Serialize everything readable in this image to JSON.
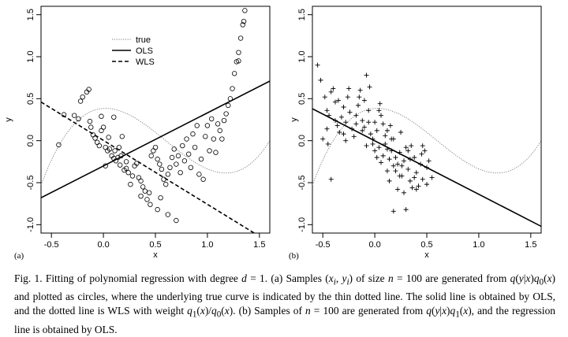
{
  "chart_data": [
    {
      "type": "scatter",
      "panel_label": "(a)",
      "xlabel": "x",
      "ylabel": "y",
      "xlim": [
        -0.6,
        1.6
      ],
      "ylim": [
        -1.1,
        1.6
      ],
      "xticks": [
        "-0.5",
        "0.0",
        "0.5",
        "1.0",
        "1.5"
      ],
      "yticks": [
        "-1.0",
        "-0.5",
        "0.0",
        "0.5",
        "1.0",
        "1.5"
      ],
      "legend": {
        "position": "top-center",
        "entries": [
          "true",
          "OLS",
          "WLS"
        ]
      },
      "series": [
        {
          "name": "true",
          "kind": "curve",
          "style": "dotted",
          "formula": "(x-0.6)^3 - (x-0.6)",
          "x": [
            -0.6,
            -0.4,
            -0.2,
            0.0,
            0.2,
            0.4,
            0.6,
            0.8,
            1.0,
            1.2,
            1.3,
            1.4,
            1.45
          ],
          "y": [
            -0.53,
            0.0,
            0.29,
            0.38,
            0.34,
            0.19,
            0.0,
            -0.19,
            -0.34,
            -0.38,
            -0.36,
            -0.29,
            -0.24
          ]
        },
        {
          "name": "OLS",
          "kind": "line",
          "style": "solid",
          "x": [
            -0.6,
            1.6
          ],
          "y": [
            -0.68,
            0.71
          ]
        },
        {
          "name": "WLS",
          "kind": "line",
          "style": "dashed",
          "x": [
            -0.6,
            1.45
          ],
          "y": [
            0.46,
            -1.1
          ]
        },
        {
          "name": "samples",
          "kind": "points",
          "marker": "circle",
          "points": [
            [
              -0.38,
              0.31
            ],
            [
              -0.28,
              0.3
            ],
            [
              -0.24,
              0.26
            ],
            [
              -0.22,
              0.47
            ],
            [
              -0.2,
              0.52
            ],
            [
              -0.16,
              0.58
            ],
            [
              -0.14,
              0.61
            ],
            [
              -0.13,
              0.23
            ],
            [
              -0.12,
              0.16
            ],
            [
              -0.1,
              0.07
            ],
            [
              -0.08,
              0.03
            ],
            [
              -0.06,
              -0.02
            ],
            [
              -0.04,
              -0.06
            ],
            [
              -0.02,
              0.29
            ],
            [
              0.0,
              0.16
            ],
            [
              0.02,
              -0.08
            ],
            [
              0.04,
              -0.12
            ],
            [
              0.06,
              -0.1
            ],
            [
              0.08,
              -0.18
            ],
            [
              0.1,
              -0.21
            ],
            [
              0.12,
              -0.24
            ],
            [
              0.14,
              -0.2
            ],
            [
              0.16,
              -0.29
            ],
            [
              0.18,
              0.05
            ],
            [
              0.2,
              -0.35
            ],
            [
              0.22,
              -0.33
            ],
            [
              0.24,
              -0.38
            ],
            [
              0.26,
              -0.52
            ],
            [
              0.28,
              -0.42
            ],
            [
              0.3,
              -0.3
            ],
            [
              0.32,
              -0.27
            ],
            [
              0.34,
              -0.44
            ],
            [
              0.36,
              -0.48
            ],
            [
              0.38,
              -0.55
            ],
            [
              0.4,
              -0.6
            ],
            [
              0.42,
              -0.7
            ],
            [
              0.44,
              -0.62
            ],
            [
              0.46,
              -0.18
            ],
            [
              0.48,
              -0.12
            ],
            [
              0.5,
              -0.08
            ],
            [
              0.52,
              -0.22
            ],
            [
              0.54,
              -0.28
            ],
            [
              0.56,
              -0.34
            ],
            [
              0.58,
              -0.46
            ],
            [
              0.6,
              -0.52
            ],
            [
              0.62,
              -0.4
            ],
            [
              0.64,
              -0.32
            ],
            [
              0.66,
              -0.2
            ],
            [
              0.68,
              -0.1
            ],
            [
              0.7,
              -0.28
            ],
            [
              0.72,
              -0.18
            ],
            [
              0.74,
              -0.38
            ],
            [
              0.76,
              -0.06
            ],
            [
              0.78,
              -0.24
            ],
            [
              0.8,
              0.02
            ],
            [
              0.82,
              -0.16
            ],
            [
              0.84,
              -0.32
            ],
            [
              0.86,
              0.08
            ],
            [
              0.88,
              -0.08
            ],
            [
              0.9,
              0.18
            ],
            [
              0.92,
              -0.4
            ],
            [
              0.94,
              -0.22
            ],
            [
              0.96,
              -0.46
            ],
            [
              0.98,
              0.05
            ],
            [
              1.0,
              0.18
            ],
            [
              1.02,
              -0.12
            ],
            [
              1.04,
              0.26
            ],
            [
              1.06,
              0.02
            ],
            [
              1.08,
              -0.14
            ],
            [
              1.1,
              0.2
            ],
            [
              1.12,
              0.12
            ],
            [
              1.14,
              0.02
            ],
            [
              1.16,
              0.24
            ],
            [
              1.18,
              0.32
            ],
            [
              1.2,
              0.42
            ],
            [
              1.22,
              0.5
            ],
            [
              1.24,
              0.62
            ],
            [
              1.26,
              0.8
            ],
            [
              1.28,
              0.94
            ],
            [
              1.3,
              1.05
            ],
            [
              1.32,
              1.22
            ],
            [
              1.34,
              1.38
            ],
            [
              1.36,
              1.55
            ],
            [
              1.3,
              0.95
            ],
            [
              1.35,
              1.42
            ],
            [
              -0.43,
              -0.05
            ],
            [
              0.17,
              -0.18
            ],
            [
              0.22,
              -0.25
            ],
            [
              0.36,
              -0.66
            ],
            [
              0.45,
              -0.76
            ],
            [
              0.52,
              -0.82
            ],
            [
              0.55,
              -0.68
            ],
            [
              0.62,
              -0.88
            ],
            [
              0.7,
              -0.95
            ],
            [
              0.15,
              -0.08
            ],
            [
              0.11,
              -0.12
            ],
            [
              0.05,
              0.04
            ],
            [
              -0.02,
              0.12
            ],
            [
              0.1,
              0.28
            ],
            [
              0.02,
              -0.3
            ]
          ]
        }
      ]
    },
    {
      "type": "scatter",
      "panel_label": "(b)",
      "xlabel": "x",
      "ylabel": "y",
      "xlim": [
        -0.6,
        1.6
      ],
      "ylim": [
        -1.1,
        1.6
      ],
      "xticks": [
        "-0.5",
        "0.0",
        "0.5",
        "1.0",
        "1.5"
      ],
      "yticks": [
        "-1.0",
        "-0.5",
        "0.0",
        "0.5",
        "1.0",
        "1.5"
      ],
      "series": [
        {
          "name": "true",
          "kind": "curve",
          "style": "dotted",
          "formula": "(x-0.6)^3 - (x-0.6)",
          "x": [
            -0.6,
            -0.4,
            -0.2,
            0.0,
            0.2,
            0.4,
            0.6,
            0.8,
            1.0,
            1.2,
            1.4,
            1.6
          ],
          "y": [
            -0.53,
            0.0,
            0.29,
            0.38,
            0.34,
            0.19,
            0.0,
            -0.19,
            -0.34,
            -0.38,
            -0.29,
            0.0
          ]
        },
        {
          "name": "OLS",
          "kind": "line",
          "style": "solid",
          "x": [
            -0.6,
            1.6
          ],
          "y": [
            0.38,
            -1.02
          ]
        },
        {
          "name": "samples",
          "kind": "points",
          "marker": "plus",
          "points": [
            [
              -0.55,
              0.9
            ],
            [
              -0.52,
              0.72
            ],
            [
              -0.48,
              0.52
            ],
            [
              -0.46,
              0.36
            ],
            [
              -0.44,
              0.3
            ],
            [
              -0.42,
              0.58
            ],
            [
              -0.4,
              0.62
            ],
            [
              -0.38,
              0.46
            ],
            [
              -0.36,
              0.18
            ],
            [
              -0.34,
              0.1
            ],
            [
              -0.32,
              0.28
            ],
            [
              -0.3,
              0.4
            ],
            [
              -0.28,
              0.22
            ],
            [
              -0.26,
              0.52
            ],
            [
              -0.24,
              0.34
            ],
            [
              -0.22,
              0.14
            ],
            [
              -0.2,
              0.05
            ],
            [
              -0.18,
              0.3
            ],
            [
              -0.16,
              0.42
            ],
            [
              -0.14,
              0.6
            ],
            [
              -0.12,
              0.24
            ],
            [
              -0.1,
              0.16
            ],
            [
              -0.08,
              0.78
            ],
            [
              -0.06,
              0.36
            ],
            [
              -0.04,
              0.08
            ],
            [
              -0.02,
              -0.04
            ],
            [
              0.0,
              0.22
            ],
            [
              0.02,
              0.12
            ],
            [
              0.04,
              -0.08
            ],
            [
              0.06,
              0.3
            ],
            [
              0.08,
              -0.18
            ],
            [
              0.1,
              0.06
            ],
            [
              0.12,
              -0.1
            ],
            [
              0.14,
              -0.22
            ],
            [
              0.16,
              0.02
            ],
            [
              0.18,
              -0.3
            ],
            [
              0.2,
              -0.36
            ],
            [
              0.22,
              -0.28
            ],
            [
              0.24,
              -0.14
            ],
            [
              0.26,
              -0.42
            ],
            [
              0.28,
              -0.24
            ],
            [
              0.3,
              -0.08
            ],
            [
              0.32,
              -0.34
            ],
            [
              0.34,
              -0.48
            ],
            [
              0.36,
              -0.56
            ],
            [
              0.38,
              -0.2
            ],
            [
              0.4,
              -0.38
            ],
            [
              0.42,
              -0.54
            ],
            [
              0.44,
              -0.28
            ],
            [
              0.46,
              -0.46
            ],
            [
              0.48,
              -0.12
            ],
            [
              0.5,
              -0.32
            ],
            [
              0.52,
              -0.24
            ],
            [
              0.55,
              -0.44
            ],
            [
              -0.5,
              0.02
            ],
            [
              -0.45,
              -0.04
            ],
            [
              -0.35,
              0.48
            ],
            [
              -0.25,
              0.62
            ],
            [
              -0.15,
              0.52
            ],
            [
              -0.05,
              0.64
            ],
            [
              0.05,
              0.44
            ],
            [
              0.15,
              0.18
            ],
            [
              0.25,
              0.1
            ],
            [
              0.35,
              -0.06
            ],
            [
              0.45,
              -0.16
            ],
            [
              0.02,
              -0.2
            ],
            [
              -0.08,
              -0.06
            ],
            [
              0.12,
              -0.36
            ],
            [
              0.22,
              -0.58
            ],
            [
              0.3,
              -0.82
            ],
            [
              0.18,
              -0.84
            ],
            [
              0.28,
              -0.62
            ],
            [
              0.4,
              -0.58
            ],
            [
              0.06,
              -0.26
            ],
            [
              -0.02,
              0.02
            ],
            [
              0.1,
              -0.04
            ],
            [
              -0.12,
              0.12
            ],
            [
              -0.28,
              0.0
            ],
            [
              -0.38,
              0.24
            ],
            [
              -0.46,
              0.14
            ],
            [
              0.2,
              -0.2
            ],
            [
              0.32,
              -0.12
            ],
            [
              0.38,
              -0.44
            ],
            [
              0.46,
              -0.06
            ],
            [
              0.14,
              -0.48
            ],
            [
              0.04,
              0.36
            ],
            [
              -0.18,
              0.2
            ],
            [
              -0.1,
              0.48
            ],
            [
              0.08,
              0.2
            ],
            [
              0.16,
              -0.12
            ],
            [
              0.26,
              -0.3
            ],
            [
              -0.42,
              -0.46
            ],
            [
              0.5,
              -0.52
            ],
            [
              0.24,
              -0.42
            ],
            [
              0.12,
              0.12
            ],
            [
              -0.06,
              0.22
            ],
            [
              0.0,
              -0.12
            ],
            [
              0.34,
              -0.22
            ],
            [
              -0.3,
              0.08
            ],
            [
              0.18,
              0.02
            ]
          ]
        }
      ]
    }
  ],
  "caption": {
    "lines": [
      [
        {
          "t": "Fig. 1. Fitting of polynomial regression with degree "
        },
        {
          "t": "d",
          "i": true
        },
        {
          "t": " = 1. (a) Samples ("
        },
        {
          "t": "x",
          "i": true
        },
        {
          "t": "i",
          "sub": true,
          "i": true
        },
        {
          "t": ", "
        },
        {
          "t": "y",
          "i": true
        },
        {
          "t": "i",
          "sub": true,
          "i": true
        },
        {
          "t": ") of size "
        },
        {
          "t": "n",
          "i": true
        },
        {
          "t": " = 100 are generated"
        }
      ],
      [
        {
          "t": "from "
        },
        {
          "t": "q",
          "i": true
        },
        {
          "t": "("
        },
        {
          "t": "y",
          "i": true
        },
        {
          "t": "|"
        },
        {
          "t": "x",
          "i": true
        },
        {
          "t": ")"
        },
        {
          "t": "q",
          "i": true
        },
        {
          "t": "0",
          "sub": true
        },
        {
          "t": "("
        },
        {
          "t": "x",
          "i": true
        },
        {
          "t": ") and plotted as circles, where the underlying true curve is indicated by the thin dotted line."
        }
      ],
      [
        {
          "t": "The solid line is obtained by OLS, and the dotted line is WLS with weight "
        },
        {
          "t": "q",
          "i": true
        },
        {
          "t": "1",
          "sub": true
        },
        {
          "t": "("
        },
        {
          "t": "x",
          "i": true
        },
        {
          "t": ")/"
        },
        {
          "t": "q",
          "i": true
        },
        {
          "t": "0",
          "sub": true
        },
        {
          "t": "("
        },
        {
          "t": "x",
          "i": true
        },
        {
          "t": "). (b) Samples of"
        }
      ],
      [
        {
          "t": "n",
          "i": true
        },
        {
          "t": " = 100 are generated from "
        },
        {
          "t": "q",
          "i": true
        },
        {
          "t": "("
        },
        {
          "t": "y",
          "i": true
        },
        {
          "t": "|"
        },
        {
          "t": "x",
          "i": true
        },
        {
          "t": ")"
        },
        {
          "t": "q",
          "i": true
        },
        {
          "t": "1",
          "sub": true
        },
        {
          "t": "("
        },
        {
          "t": "x",
          "i": true
        },
        {
          "t": "), and the regression line is obtained by OLS."
        }
      ]
    ]
  }
}
